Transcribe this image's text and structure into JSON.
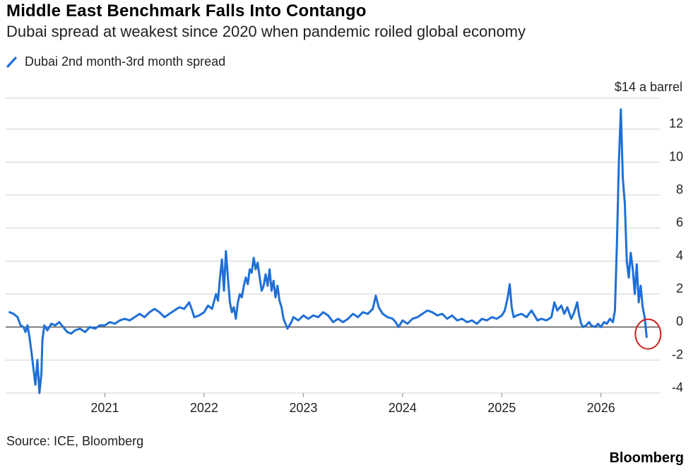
{
  "title": "Middle East Benchmark Falls Into Contango",
  "subtitle": "Dubai spread at weakest since 2020 when pandemic roiled global economy",
  "source": "Source: ICE, Bloomberg",
  "brand": "Bloomberg",
  "colors": {
    "line": "#1f6fd6",
    "highlight": "#cc1f1f",
    "grid": "#d0d0d0",
    "zero": "#222222"
  },
  "chart_data": {
    "type": "line",
    "title": "Middle East Benchmark Falls Into Contango",
    "subtitle": "Dubai spread at weakest since 2020 when pandemic roiled global economy",
    "unit_label": "$14 a barrel",
    "grid": true,
    "legend_position": "top-left",
    "ylim": [
      -4,
      14
    ],
    "y_ticks": [
      -4,
      -2,
      0,
      2,
      4,
      6,
      8,
      10,
      12
    ],
    "x_range": [
      2020.0,
      2026.65
    ],
    "x_ticks": [
      {
        "value": 2021,
        "label": "2021"
      },
      {
        "value": 2022,
        "label": "2022"
      },
      {
        "value": 2023,
        "label": "2023"
      },
      {
        "value": 2024,
        "label": "2024"
      },
      {
        "value": 2025,
        "label": "2025"
      },
      {
        "value": 2026,
        "label": "2026"
      }
    ],
    "highlight": {
      "x": 2026.46,
      "y": -0.6,
      "shape": "circle"
    },
    "series": [
      {
        "name": "Dubai 2nd month-3rd month spread",
        "points": [
          [
            2020.04,
            0.9
          ],
          [
            2020.08,
            0.8
          ],
          [
            2020.12,
            0.6
          ],
          [
            2020.15,
            0.1
          ],
          [
            2020.18,
            0.0
          ],
          [
            2020.2,
            -0.3
          ],
          [
            2020.22,
            0.1
          ],
          [
            2020.24,
            -0.6
          ],
          [
            2020.26,
            -1.5
          ],
          [
            2020.28,
            -2.5
          ],
          [
            2020.3,
            -3.5
          ],
          [
            2020.32,
            -2.0
          ],
          [
            2020.34,
            -4.0
          ],
          [
            2020.36,
            -2.8
          ],
          [
            2020.37,
            -0.8
          ],
          [
            2020.39,
            0.1
          ],
          [
            2020.42,
            -0.2
          ],
          [
            2020.46,
            0.2
          ],
          [
            2020.5,
            0.1
          ],
          [
            2020.54,
            0.3
          ],
          [
            2020.58,
            0.0
          ],
          [
            2020.62,
            -0.3
          ],
          [
            2020.66,
            -0.4
          ],
          [
            2020.7,
            -0.2
          ],
          [
            2020.75,
            -0.1
          ],
          [
            2020.8,
            -0.3
          ],
          [
            2020.85,
            0.0
          ],
          [
            2020.9,
            -0.1
          ],
          [
            2020.95,
            0.1
          ],
          [
            2021.0,
            0.1
          ],
          [
            2021.05,
            0.3
          ],
          [
            2021.1,
            0.2
          ],
          [
            2021.15,
            0.4
          ],
          [
            2021.2,
            0.5
          ],
          [
            2021.25,
            0.4
          ],
          [
            2021.3,
            0.6
          ],
          [
            2021.35,
            0.8
          ],
          [
            2021.4,
            0.6
          ],
          [
            2021.45,
            0.9
          ],
          [
            2021.5,
            1.1
          ],
          [
            2021.55,
            0.9
          ],
          [
            2021.6,
            0.6
          ],
          [
            2021.65,
            0.8
          ],
          [
            2021.7,
            1.0
          ],
          [
            2021.75,
            1.2
          ],
          [
            2021.8,
            1.1
          ],
          [
            2021.85,
            1.5
          ],
          [
            2021.88,
            1.0
          ],
          [
            2021.9,
            0.6
          ],
          [
            2021.95,
            0.7
          ],
          [
            2022.0,
            0.9
          ],
          [
            2022.04,
            1.3
          ],
          [
            2022.08,
            1.1
          ],
          [
            2022.12,
            2.0
          ],
          [
            2022.14,
            1.6
          ],
          [
            2022.16,
            3.0
          ],
          [
            2022.18,
            4.1
          ],
          [
            2022.2,
            2.2
          ],
          [
            2022.22,
            4.6
          ],
          [
            2022.24,
            3.0
          ],
          [
            2022.26,
            1.5
          ],
          [
            2022.28,
            0.9
          ],
          [
            2022.3,
            1.2
          ],
          [
            2022.32,
            0.5
          ],
          [
            2022.34,
            1.5
          ],
          [
            2022.36,
            2.0
          ],
          [
            2022.38,
            1.8
          ],
          [
            2022.4,
            2.5
          ],
          [
            2022.42,
            3.0
          ],
          [
            2022.44,
            2.6
          ],
          [
            2022.46,
            3.5
          ],
          [
            2022.48,
            3.3
          ],
          [
            2022.5,
            4.2
          ],
          [
            2022.52,
            3.5
          ],
          [
            2022.54,
            3.9
          ],
          [
            2022.56,
            3.0
          ],
          [
            2022.58,
            2.2
          ],
          [
            2022.6,
            2.5
          ],
          [
            2022.62,
            3.2
          ],
          [
            2022.64,
            2.5
          ],
          [
            2022.66,
            3.5
          ],
          [
            2022.68,
            2.2
          ],
          [
            2022.7,
            2.8
          ],
          [
            2022.72,
            1.8
          ],
          [
            2022.74,
            2.5
          ],
          [
            2022.76,
            1.6
          ],
          [
            2022.78,
            1.2
          ],
          [
            2022.8,
            0.5
          ],
          [
            2022.82,
            0.2
          ],
          [
            2022.84,
            -0.1
          ],
          [
            2022.86,
            0.1
          ],
          [
            2022.88,
            0.3
          ],
          [
            2022.9,
            0.6
          ],
          [
            2022.95,
            0.4
          ],
          [
            2023.0,
            0.7
          ],
          [
            2023.05,
            0.5
          ],
          [
            2023.1,
            0.7
          ],
          [
            2023.15,
            0.6
          ],
          [
            2023.2,
            0.9
          ],
          [
            2023.25,
            0.7
          ],
          [
            2023.3,
            0.3
          ],
          [
            2023.35,
            0.5
          ],
          [
            2023.4,
            0.3
          ],
          [
            2023.45,
            0.5
          ],
          [
            2023.5,
            0.8
          ],
          [
            2023.55,
            0.6
          ],
          [
            2023.6,
            0.9
          ],
          [
            2023.65,
            0.8
          ],
          [
            2023.7,
            1.1
          ],
          [
            2023.73,
            1.9
          ],
          [
            2023.76,
            1.2
          ],
          [
            2023.8,
            0.8
          ],
          [
            2023.85,
            0.6
          ],
          [
            2023.9,
            0.5
          ],
          [
            2023.93,
            0.3
          ],
          [
            2023.96,
            0.0
          ],
          [
            2024.0,
            0.4
          ],
          [
            2024.05,
            0.2
          ],
          [
            2024.1,
            0.5
          ],
          [
            2024.15,
            0.6
          ],
          [
            2024.2,
            0.8
          ],
          [
            2024.25,
            1.0
          ],
          [
            2024.3,
            0.9
          ],
          [
            2024.35,
            0.7
          ],
          [
            2024.4,
            0.8
          ],
          [
            2024.45,
            0.5
          ],
          [
            2024.5,
            0.7
          ],
          [
            2024.55,
            0.4
          ],
          [
            2024.6,
            0.5
          ],
          [
            2024.65,
            0.3
          ],
          [
            2024.7,
            0.4
          ],
          [
            2024.75,
            0.2
          ],
          [
            2024.8,
            0.5
          ],
          [
            2024.85,
            0.4
          ],
          [
            2024.9,
            0.6
          ],
          [
            2024.95,
            0.5
          ],
          [
            2025.0,
            0.7
          ],
          [
            2025.03,
            1.0
          ],
          [
            2025.06,
            1.8
          ],
          [
            2025.08,
            2.6
          ],
          [
            2025.1,
            1.2
          ],
          [
            2025.12,
            0.6
          ],
          [
            2025.15,
            0.7
          ],
          [
            2025.2,
            0.8
          ],
          [
            2025.25,
            0.6
          ],
          [
            2025.3,
            1.0
          ],
          [
            2025.33,
            0.7
          ],
          [
            2025.36,
            0.4
          ],
          [
            2025.4,
            0.5
          ],
          [
            2025.45,
            0.4
          ],
          [
            2025.5,
            0.6
          ],
          [
            2025.53,
            1.5
          ],
          [
            2025.56,
            1.0
          ],
          [
            2025.6,
            1.3
          ],
          [
            2025.63,
            0.8
          ],
          [
            2025.66,
            1.2
          ],
          [
            2025.7,
            0.5
          ],
          [
            2025.73,
            0.9
          ],
          [
            2025.76,
            1.5
          ],
          [
            2025.78,
            0.7
          ],
          [
            2025.8,
            0.2
          ],
          [
            2025.82,
            0.0
          ],
          [
            2025.85,
            0.1
          ],
          [
            2025.88,
            0.3
          ],
          [
            2025.9,
            0.1
          ],
          [
            2025.94,
            0.0
          ],
          [
            2025.97,
            0.2
          ],
          [
            2026.0,
            0.0
          ],
          [
            2026.03,
            0.3
          ],
          [
            2026.06,
            0.2
          ],
          [
            2026.09,
            0.5
          ],
          [
            2026.12,
            0.3
          ],
          [
            2026.14,
            1.0
          ],
          [
            2026.16,
            5.0
          ],
          [
            2026.18,
            10.0
          ],
          [
            2026.2,
            13.2
          ],
          [
            2026.22,
            9.0
          ],
          [
            2026.24,
            7.5
          ],
          [
            2026.26,
            4.0
          ],
          [
            2026.28,
            3.0
          ],
          [
            2026.3,
            4.5
          ],
          [
            2026.32,
            3.5
          ],
          [
            2026.34,
            2.0
          ],
          [
            2026.36,
            3.8
          ],
          [
            2026.38,
            1.5
          ],
          [
            2026.4,
            2.5
          ],
          [
            2026.42,
            1.2
          ],
          [
            2026.44,
            0.6
          ],
          [
            2026.46,
            -0.6
          ]
        ]
      }
    ]
  }
}
